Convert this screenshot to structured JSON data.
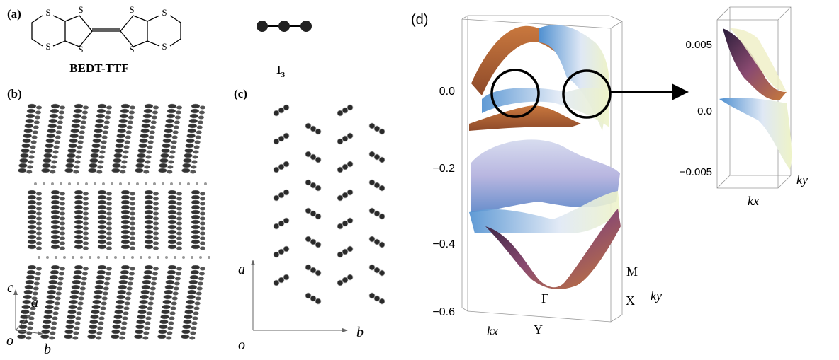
{
  "panels": {
    "a": {
      "label": "(a)",
      "molecule": "BEDT-TTF",
      "atom": "S",
      "anion": {
        "base": "I",
        "sub": "3",
        "sup": "-"
      }
    },
    "b": {
      "label": "(b)",
      "axes": {
        "c": "c",
        "a": "a",
        "o": "o",
        "b": "b"
      }
    },
    "c": {
      "label": "(c)",
      "axes": {
        "a": "a",
        "o": "o",
        "b": "b"
      }
    },
    "d": {
      "label": "(d)",
      "energy_ticks": [
        "0.0",
        "−0.2",
        "−0.4",
        "−0.6"
      ],
      "points": {
        "M": "M",
        "X": "X",
        "Gamma": "Γ",
        "Y": "Y"
      },
      "kx": "kx",
      "ky": "ky",
      "inset": {
        "ticks": [
          "0.005",
          "0.0",
          "−0.005"
        ],
        "kx": "kx",
        "ky": "ky"
      }
    }
  }
}
